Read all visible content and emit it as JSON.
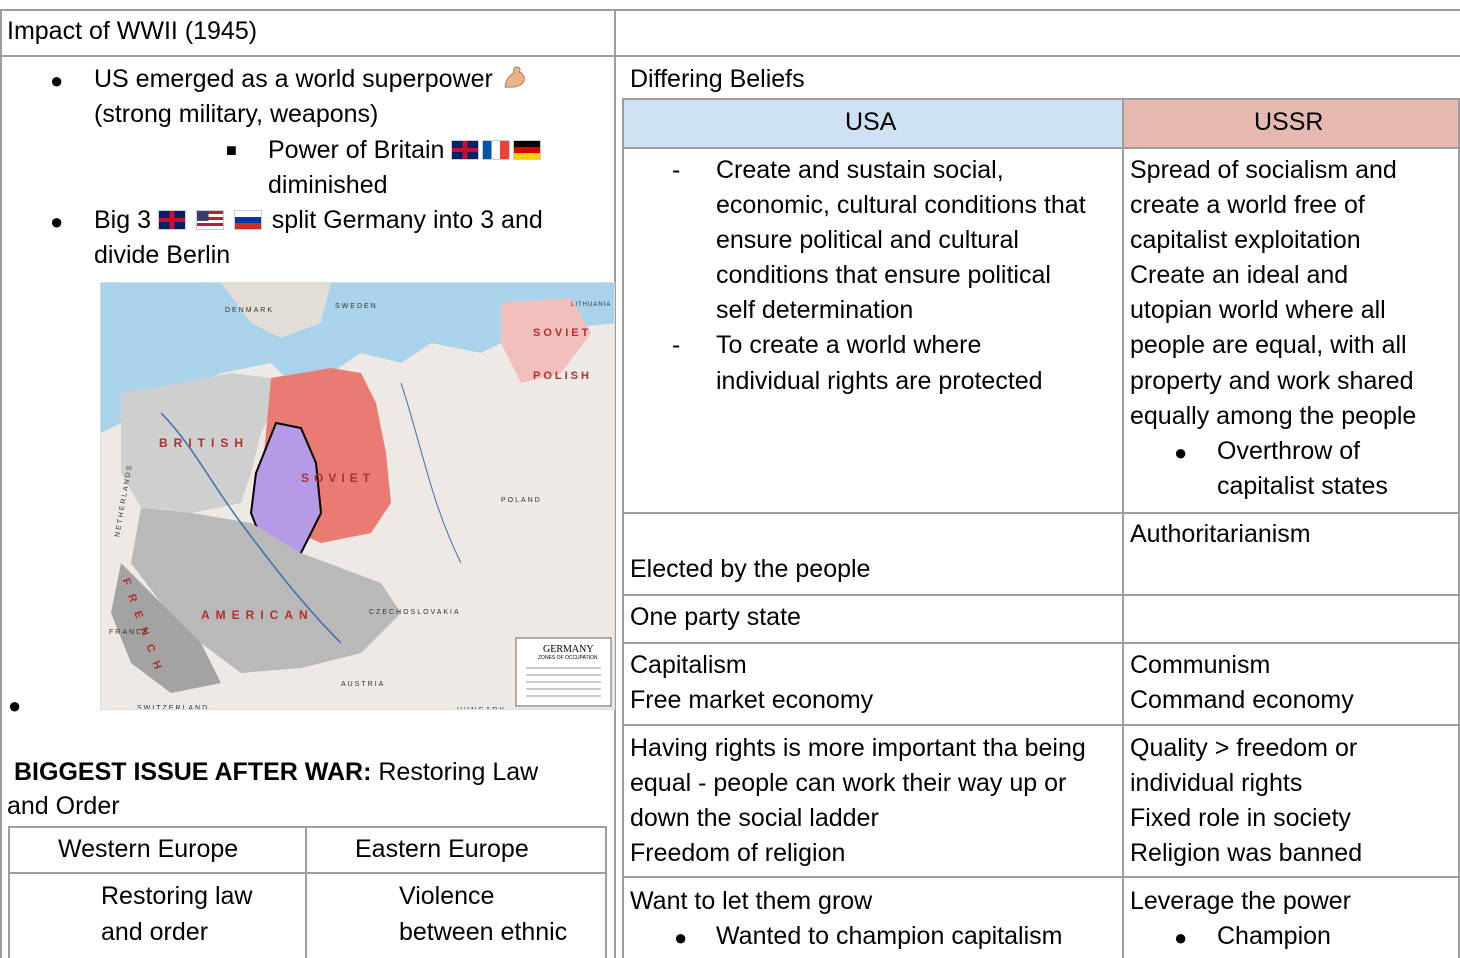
{
  "left": {
    "title": "Impact of WWII (1945)",
    "bullet1_line1": "US emerged as a world superpower",
    "bullet1_line2": "(strong military, weapons)",
    "sub_line1": "Power of Britain",
    "sub_line2": "diminished",
    "bullet2_prefix": "Big 3",
    "bullet2_suffix": "split Germany into 3 and",
    "bullet2_line2": "divide Berlin",
    "map": {
      "labels": [
        "SOVIET",
        "POLISH",
        "BRITISH",
        "SOVIET",
        "AMERICAN",
        "FRENCH",
        "POLAND",
        "CZECHOSLOVAKIA",
        "AUSTRIA",
        "FRANCE",
        "SWITZERLAND",
        "DENMARK",
        "SWEDEN",
        "LITHUANIA",
        "HUNGARY",
        "NETHERLANDS"
      ],
      "legend_title": "GERMANY",
      "legend_subtitle": "ZONES OF OCCUPATION"
    },
    "issue_bold": "BIGGEST ISSUE AFTER WAR:",
    "issue_rest": "Restoring Law",
    "issue_line2": "and Order",
    "europe_table": {
      "headers": [
        "Western Europe",
        "Eastern Europe"
      ],
      "western_l1": "Restoring law",
      "western_l2": "and order",
      "eastern_l1": "Violence",
      "eastern_l2": "between ethnic"
    }
  },
  "right": {
    "title": "Differing Beliefs",
    "col_usa": "USA",
    "col_ussr": "USSR",
    "colors": {
      "usa_header": "#cfe2f3",
      "ussr_header": "#e6b8af",
      "border": "#9e9e9e"
    },
    "row1": {
      "usa_item1": [
        "Create and sustain social,",
        "economic, cultural conditions that",
        "ensure political and cultural",
        "conditions that ensure political",
        "self determination"
      ],
      "usa_item2": [
        "To create a world where",
        "individual rights are protected"
      ],
      "ussr": [
        "Spread of socialism and",
        "create a world free of",
        "capitalist exploitation",
        "Create an ideal and",
        "utopian world where all",
        "people are equal, with all",
        "property and work shared",
        "equally among the people"
      ],
      "ussr_bullet": [
        "Overthrow of",
        "capitalist states"
      ]
    },
    "row2": {
      "usa": "Elected by the people",
      "ussr": "Authoritarianism"
    },
    "row3": {
      "usa": "One party state",
      "ussr": ""
    },
    "row4": {
      "usa": [
        "Capitalism",
        "Free market economy"
      ],
      "ussr": [
        "Communism",
        "Command economy"
      ]
    },
    "row5": {
      "usa": [
        "Having rights is more important tha being",
        "equal - people can work their way up or",
        "down the social ladder",
        "Freedom of religion"
      ],
      "ussr": [
        "Quality > freedom or",
        "individual rights",
        "Fixed role in society",
        "Religion was banned"
      ]
    },
    "row6": {
      "usa": "Want to let them grow",
      "usa_bullet": "Wanted to champion capitalism",
      "ussr": "Leverage the power",
      "ussr_bullet": "Champion"
    }
  }
}
